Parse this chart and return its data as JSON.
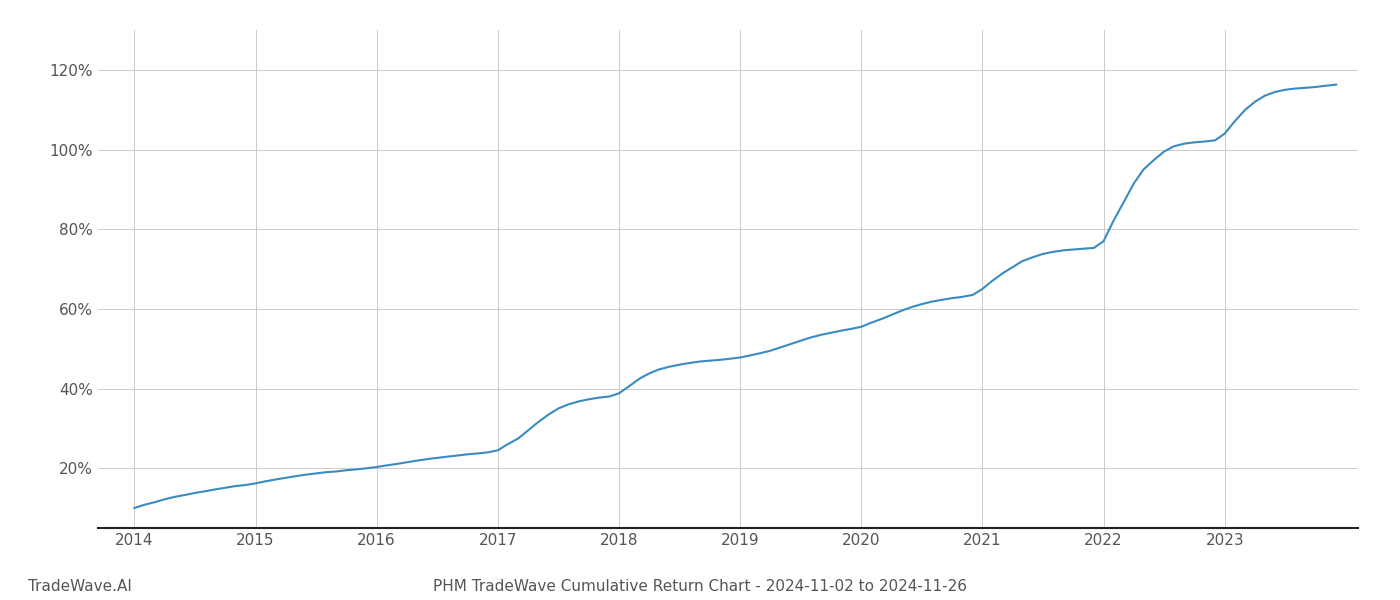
{
  "title": "PHM TradeWave Cumulative Return Chart - 2024-11-02 to 2024-11-26",
  "watermark": "TradeWave.AI",
  "line_color": "#3a8bbf",
  "line_width": 1.5,
  "background_color": "#ffffff",
  "grid_color": "#cccccc",
  "x_years": [
    2014,
    2015,
    2016,
    2017,
    2018,
    2019,
    2020,
    2021,
    2022,
    2023
  ],
  "x_data": [
    2014.0,
    2014.08,
    2014.17,
    2014.25,
    2014.33,
    2014.42,
    2014.5,
    2014.58,
    2014.67,
    2014.75,
    2014.83,
    2014.92,
    2015.0,
    2015.08,
    2015.17,
    2015.25,
    2015.33,
    2015.42,
    2015.5,
    2015.58,
    2015.67,
    2015.75,
    2015.83,
    2015.92,
    2016.0,
    2016.08,
    2016.17,
    2016.25,
    2016.33,
    2016.42,
    2016.5,
    2016.58,
    2016.67,
    2016.75,
    2016.83,
    2016.92,
    2017.0,
    2017.08,
    2017.17,
    2017.25,
    2017.33,
    2017.42,
    2017.5,
    2017.58,
    2017.67,
    2017.75,
    2017.83,
    2017.92,
    2018.0,
    2018.08,
    2018.17,
    2018.25,
    2018.33,
    2018.42,
    2018.5,
    2018.58,
    2018.67,
    2018.75,
    2018.83,
    2018.92,
    2019.0,
    2019.08,
    2019.17,
    2019.25,
    2019.33,
    2019.42,
    2019.5,
    2019.58,
    2019.67,
    2019.75,
    2019.83,
    2019.92,
    2020.0,
    2020.08,
    2020.17,
    2020.25,
    2020.33,
    2020.42,
    2020.5,
    2020.58,
    2020.67,
    2020.75,
    2020.83,
    2020.92,
    2021.0,
    2021.08,
    2021.17,
    2021.25,
    2021.33,
    2021.42,
    2021.5,
    2021.58,
    2021.67,
    2021.75,
    2021.83,
    2021.92,
    2022.0,
    2022.08,
    2022.17,
    2022.25,
    2022.33,
    2022.42,
    2022.5,
    2022.58,
    2022.67,
    2022.75,
    2022.83,
    2022.92,
    2023.0,
    2023.08,
    2023.17,
    2023.25,
    2023.33,
    2023.42,
    2023.5,
    2023.58,
    2023.67,
    2023.75,
    2023.83,
    2023.92
  ],
  "y_data": [
    10.0,
    10.8,
    11.5,
    12.2,
    12.8,
    13.3,
    13.8,
    14.2,
    14.7,
    15.1,
    15.5,
    15.8,
    16.2,
    16.7,
    17.2,
    17.6,
    18.0,
    18.4,
    18.7,
    19.0,
    19.2,
    19.5,
    19.7,
    20.0,
    20.3,
    20.7,
    21.1,
    21.5,
    21.9,
    22.3,
    22.6,
    22.9,
    23.2,
    23.5,
    23.7,
    24.0,
    24.5,
    26.0,
    27.5,
    29.5,
    31.5,
    33.5,
    35.0,
    36.0,
    36.8,
    37.3,
    37.7,
    38.0,
    38.8,
    40.5,
    42.5,
    43.8,
    44.8,
    45.5,
    46.0,
    46.4,
    46.8,
    47.0,
    47.2,
    47.5,
    47.8,
    48.3,
    48.9,
    49.5,
    50.3,
    51.2,
    52.0,
    52.8,
    53.5,
    54.0,
    54.5,
    55.0,
    55.5,
    56.5,
    57.5,
    58.5,
    59.5,
    60.5,
    61.2,
    61.8,
    62.3,
    62.7,
    63.0,
    63.5,
    65.0,
    67.0,
    69.0,
    70.5,
    72.0,
    73.0,
    73.8,
    74.3,
    74.7,
    74.9,
    75.1,
    75.3,
    77.0,
    82.0,
    87.0,
    91.5,
    95.0,
    97.5,
    99.5,
    100.8,
    101.5,
    101.8,
    102.0,
    102.3,
    104.0,
    107.0,
    110.0,
    112.0,
    113.5,
    114.5,
    115.0,
    115.3,
    115.5,
    115.7,
    116.0,
    116.3
  ],
  "ylim": [
    5,
    130
  ],
  "yticks": [
    20,
    40,
    60,
    80,
    100,
    120
  ],
  "xlim": [
    2013.7,
    2024.1
  ],
  "title_fontsize": 11,
  "watermark_fontsize": 11,
  "tick_fontsize": 11,
  "tick_color": "#555555",
  "spine_color": "#888888"
}
